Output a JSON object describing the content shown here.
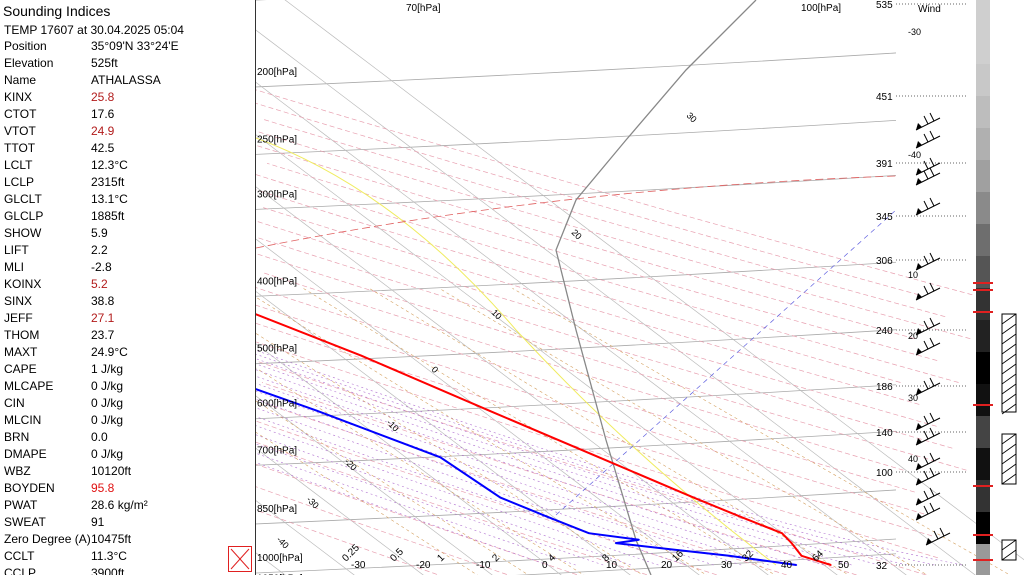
{
  "panel": {
    "title": "Sounding Indices",
    "subtitle": "TEMP 17607 at 30.04.2025 05:04",
    "rows": [
      {
        "k": "Position",
        "v": "35°09'N 33°24'E",
        "c": ""
      },
      {
        "k": "Elevation",
        "v": "525ft",
        "c": ""
      },
      {
        "k": "Name",
        "v": "ATHALASSA",
        "c": ""
      },
      {
        "k": "KINX",
        "v": "25.8",
        "c": "red"
      },
      {
        "k": "CTOT",
        "v": "17.6",
        "c": ""
      },
      {
        "k": "VTOT",
        "v": "24.9",
        "c": "red"
      },
      {
        "k": "TTOT",
        "v": "42.5",
        "c": ""
      },
      {
        "k": "LCLT",
        "v": "12.3°C",
        "c": ""
      },
      {
        "k": "LCLP",
        "v": "2315ft",
        "c": ""
      },
      {
        "k": "GLCLT",
        "v": "13.1°C",
        "c": ""
      },
      {
        "k": "GLCLP",
        "v": "1885ft",
        "c": ""
      },
      {
        "k": "SHOW",
        "v": "5.9",
        "c": ""
      },
      {
        "k": "LIFT",
        "v": "2.2",
        "c": ""
      },
      {
        "k": "MLI",
        "v": "-2.8",
        "c": ""
      },
      {
        "k": "KOINX",
        "v": "5.2",
        "c": "red"
      },
      {
        "k": "SINX",
        "v": "38.8",
        "c": ""
      },
      {
        "k": "JEFF",
        "v": "27.1",
        "c": "red"
      },
      {
        "k": "THOM",
        "v": "23.7",
        "c": ""
      },
      {
        "k": "MAXT",
        "v": "24.9°C",
        "c": ""
      },
      {
        "k": "CAPE",
        "v": "1 J/kg",
        "c": ""
      },
      {
        "k": "MLCAPE",
        "v": "0 J/kg",
        "c": ""
      },
      {
        "k": "CIN",
        "v": "0 J/kg",
        "c": ""
      },
      {
        "k": "MLCIN",
        "v": "0 J/kg",
        "c": ""
      },
      {
        "k": "BRN",
        "v": "0.0",
        "c": ""
      },
      {
        "k": "DMAPE",
        "v": "0 J/kg",
        "c": ""
      },
      {
        "k": "WBZ",
        "v": "10120ft",
        "c": ""
      },
      {
        "k": "BOYDEN",
        "v": "95.8",
        "c": "brightred"
      },
      {
        "k": "PWAT",
        "v": "28.6 kg/m²",
        "c": ""
      },
      {
        "k": "SWEAT",
        "v": "91",
        "c": ""
      },
      {
        "k": "Zero Degree (A)",
        "v": "10475ft",
        "c": ""
      },
      {
        "k": "CCLT",
        "v": "11.3°C",
        "c": ""
      },
      {
        "k": "CCLP",
        "v": "3900ft",
        "c": ""
      }
    ]
  },
  "chart_data": {
    "type": "line",
    "title": "",
    "wind_label": "Wind",
    "pressure_labels": [
      "70[hPa]",
      "100[hPa]",
      "70[hPa]",
      "100[hPa]",
      "150[hPa]",
      "200[hPa]",
      "250[hPa]",
      "300[hPa]",
      "400[hPa]",
      "500[hPa]",
      "600[hPa]",
      "700[hPa]",
      "850[hPa]",
      "1000[hPa]",
      "1050[hPa]"
    ],
    "height_labels": [
      "535",
      "451",
      "391",
      "345",
      "306",
      "240",
      "186",
      "140",
      "100",
      "32"
    ],
    "height_sub_labels": [
      "-30",
      "-40",
      "10",
      "20",
      "30",
      "40"
    ],
    "isotherm_labels": [
      "30",
      "20",
      "10",
      "0",
      "-10",
      "-20",
      "-30",
      "-40"
    ],
    "bottom_labels": [
      "0.25",
      "0.5",
      "1",
      "2",
      "4",
      "8",
      "16",
      "32",
      "64",
      "-30",
      "-20",
      "-10",
      "0",
      "10",
      "20",
      "30",
      "40",
      "50"
    ],
    "profile_axis": "pressure (hPa)",
    "series": [
      {
        "color": "#ff0000",
        "values": [
          [
            1000,
            21
          ],
          [
            970,
            18.5
          ],
          [
            930,
            19.5
          ],
          [
            900,
            20
          ],
          [
            850,
            17
          ],
          [
            800,
            14
          ],
          [
            700,
            8
          ],
          [
            600,
            1
          ],
          [
            500,
            -7
          ],
          [
            400,
            -19
          ],
          [
            320,
            -30
          ],
          [
            300,
            -33
          ],
          [
            250,
            -40
          ],
          [
            200,
            -51
          ],
          [
            170,
            -55
          ],
          [
            150,
            -58
          ],
          [
            130,
            -57
          ],
          [
            110,
            -60
          ],
          [
            100,
            -63
          ],
          [
            90,
            -65
          ],
          [
            80,
            -69
          ],
          [
            70,
            -70
          ],
          [
            60,
            -68
          ],
          [
            50,
            -66
          ]
        ]
      },
      {
        "color": "#0000ff",
        "values": [
          [
            1000,
            16
          ],
          [
            970,
            8
          ],
          [
            950,
            1
          ],
          [
            930,
            -6
          ],
          [
            920,
            -2
          ],
          [
            900,
            -8
          ],
          [
            850,
            -11
          ],
          [
            800,
            -14
          ],
          [
            700,
            -15
          ],
          [
            600,
            -24
          ],
          [
            500,
            -36
          ],
          [
            400,
            -40
          ],
          [
            320,
            -40
          ],
          [
            300,
            -48
          ],
          [
            250,
            -62
          ],
          [
            200,
            -70
          ],
          [
            170,
            -74
          ],
          [
            150,
            -74
          ],
          [
            130,
            -73
          ],
          [
            110,
            -72
          ],
          [
            100,
            -74
          ],
          [
            90,
            -76
          ],
          [
            80,
            -78
          ],
          [
            70,
            -80
          ],
          [
            60,
            -80
          ],
          [
            50,
            -79
          ]
        ]
      }
    ]
  }
}
